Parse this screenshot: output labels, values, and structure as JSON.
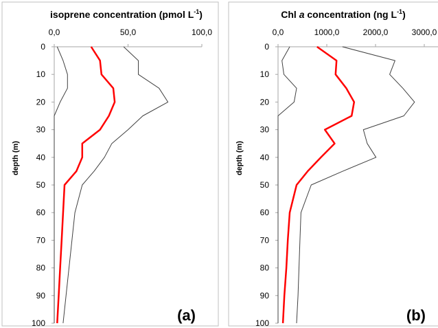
{
  "chart_data": [
    {
      "type": "line",
      "panel_label": "(a)",
      "title": {
        "main": "isoprene concentration (pmol L",
        "sup": "-1",
        "close": ")"
      },
      "ylabel": "depth (m)",
      "xlim": [
        0,
        100
      ],
      "ylim": [
        0,
        100
      ],
      "y_reversed": true,
      "x_axis_position": "top",
      "x_ticks": [
        "0,0",
        "50,0",
        "100,0"
      ],
      "y_ticks": [
        "0",
        "10",
        "20",
        "30",
        "40",
        "50",
        "60",
        "70",
        "80",
        "90",
        "100"
      ],
      "grid": false,
      "series": [
        {
          "color": "#ff0000",
          "stroke_weight": "bold",
          "x": [
            25,
            31,
            32,
            40,
            41,
            37,
            31,
            19,
            19,
            15,
            7,
            6,
            5,
            4,
            3,
            2
          ],
          "y": [
            0,
            5,
            10,
            15,
            20,
            25,
            30,
            35,
            40,
            45,
            50,
            60,
            70,
            80,
            90,
            100
          ]
        },
        {
          "color": "#404040",
          "stroke_weight": "thin",
          "x": [
            47,
            57,
            57,
            71,
            77,
            60,
            50,
            39,
            34,
            27,
            19,
            14,
            12,
            10,
            8,
            6
          ],
          "y": [
            0,
            5,
            10,
            15,
            20,
            25,
            30,
            35,
            40,
            45,
            50,
            60,
            70,
            80,
            90,
            100
          ]
        },
        {
          "color": "#404040",
          "stroke_weight": "thin",
          "x": [
            2,
            6,
            9,
            9,
            4,
            0,
            0,
            0,
            0,
            0,
            0,
            0,
            0,
            0,
            0,
            0
          ],
          "y": [
            0,
            5,
            10,
            15,
            20,
            25,
            30,
            35,
            40,
            45,
            50,
            60,
            70,
            80,
            90,
            100
          ]
        }
      ]
    },
    {
      "type": "line",
      "panel_label": "(b)",
      "title": {
        "main": "Chl ",
        "italic": "a",
        "rest": " concentration (ng L",
        "sup": "-1",
        "close": ")"
      },
      "ylabel": "depth (m)",
      "xlim": [
        0,
        3000
      ],
      "ylim": [
        0,
        100
      ],
      "y_reversed": true,
      "x_axis_position": "top",
      "x_ticks": [
        "0,0",
        "1000,0",
        "2000,0",
        "3000,0"
      ],
      "y_ticks": [
        "0",
        "10",
        "20",
        "30",
        "40",
        "50",
        "60",
        "70",
        "80",
        "90",
        "100"
      ],
      "grid": false,
      "series": [
        {
          "color": "#ff0000",
          "stroke_weight": "bold",
          "x": [
            800,
            1200,
            1180,
            1400,
            1560,
            1510,
            960,
            1160,
            880,
            610,
            380,
            240,
            200,
            170,
            130,
            100
          ],
          "y": [
            0,
            5,
            10,
            15,
            20,
            25,
            30,
            35,
            40,
            45,
            50,
            60,
            70,
            80,
            90,
            100
          ]
        },
        {
          "color": "#404040",
          "stroke_weight": "thin",
          "x": [
            1320,
            2400,
            2290,
            2560,
            2800,
            2580,
            1750,
            1830,
            2010,
            1330,
            680,
            470,
            450,
            430,
            410,
            380
          ],
          "y": [
            0,
            5,
            10,
            15,
            20,
            25,
            30,
            35,
            40,
            45,
            50,
            60,
            70,
            80,
            90,
            100
          ]
        },
        {
          "color": "#404040",
          "stroke_weight": "thin",
          "x": [
            240,
            80,
            120,
            380,
            330,
            0,
            0,
            0,
            0,
            0,
            0,
            0,
            0,
            0,
            0,
            0
          ],
          "y": [
            0,
            5,
            10,
            15,
            20,
            25,
            30,
            35,
            40,
            45,
            50,
            60,
            70,
            80,
            90,
            100
          ]
        }
      ]
    }
  ]
}
